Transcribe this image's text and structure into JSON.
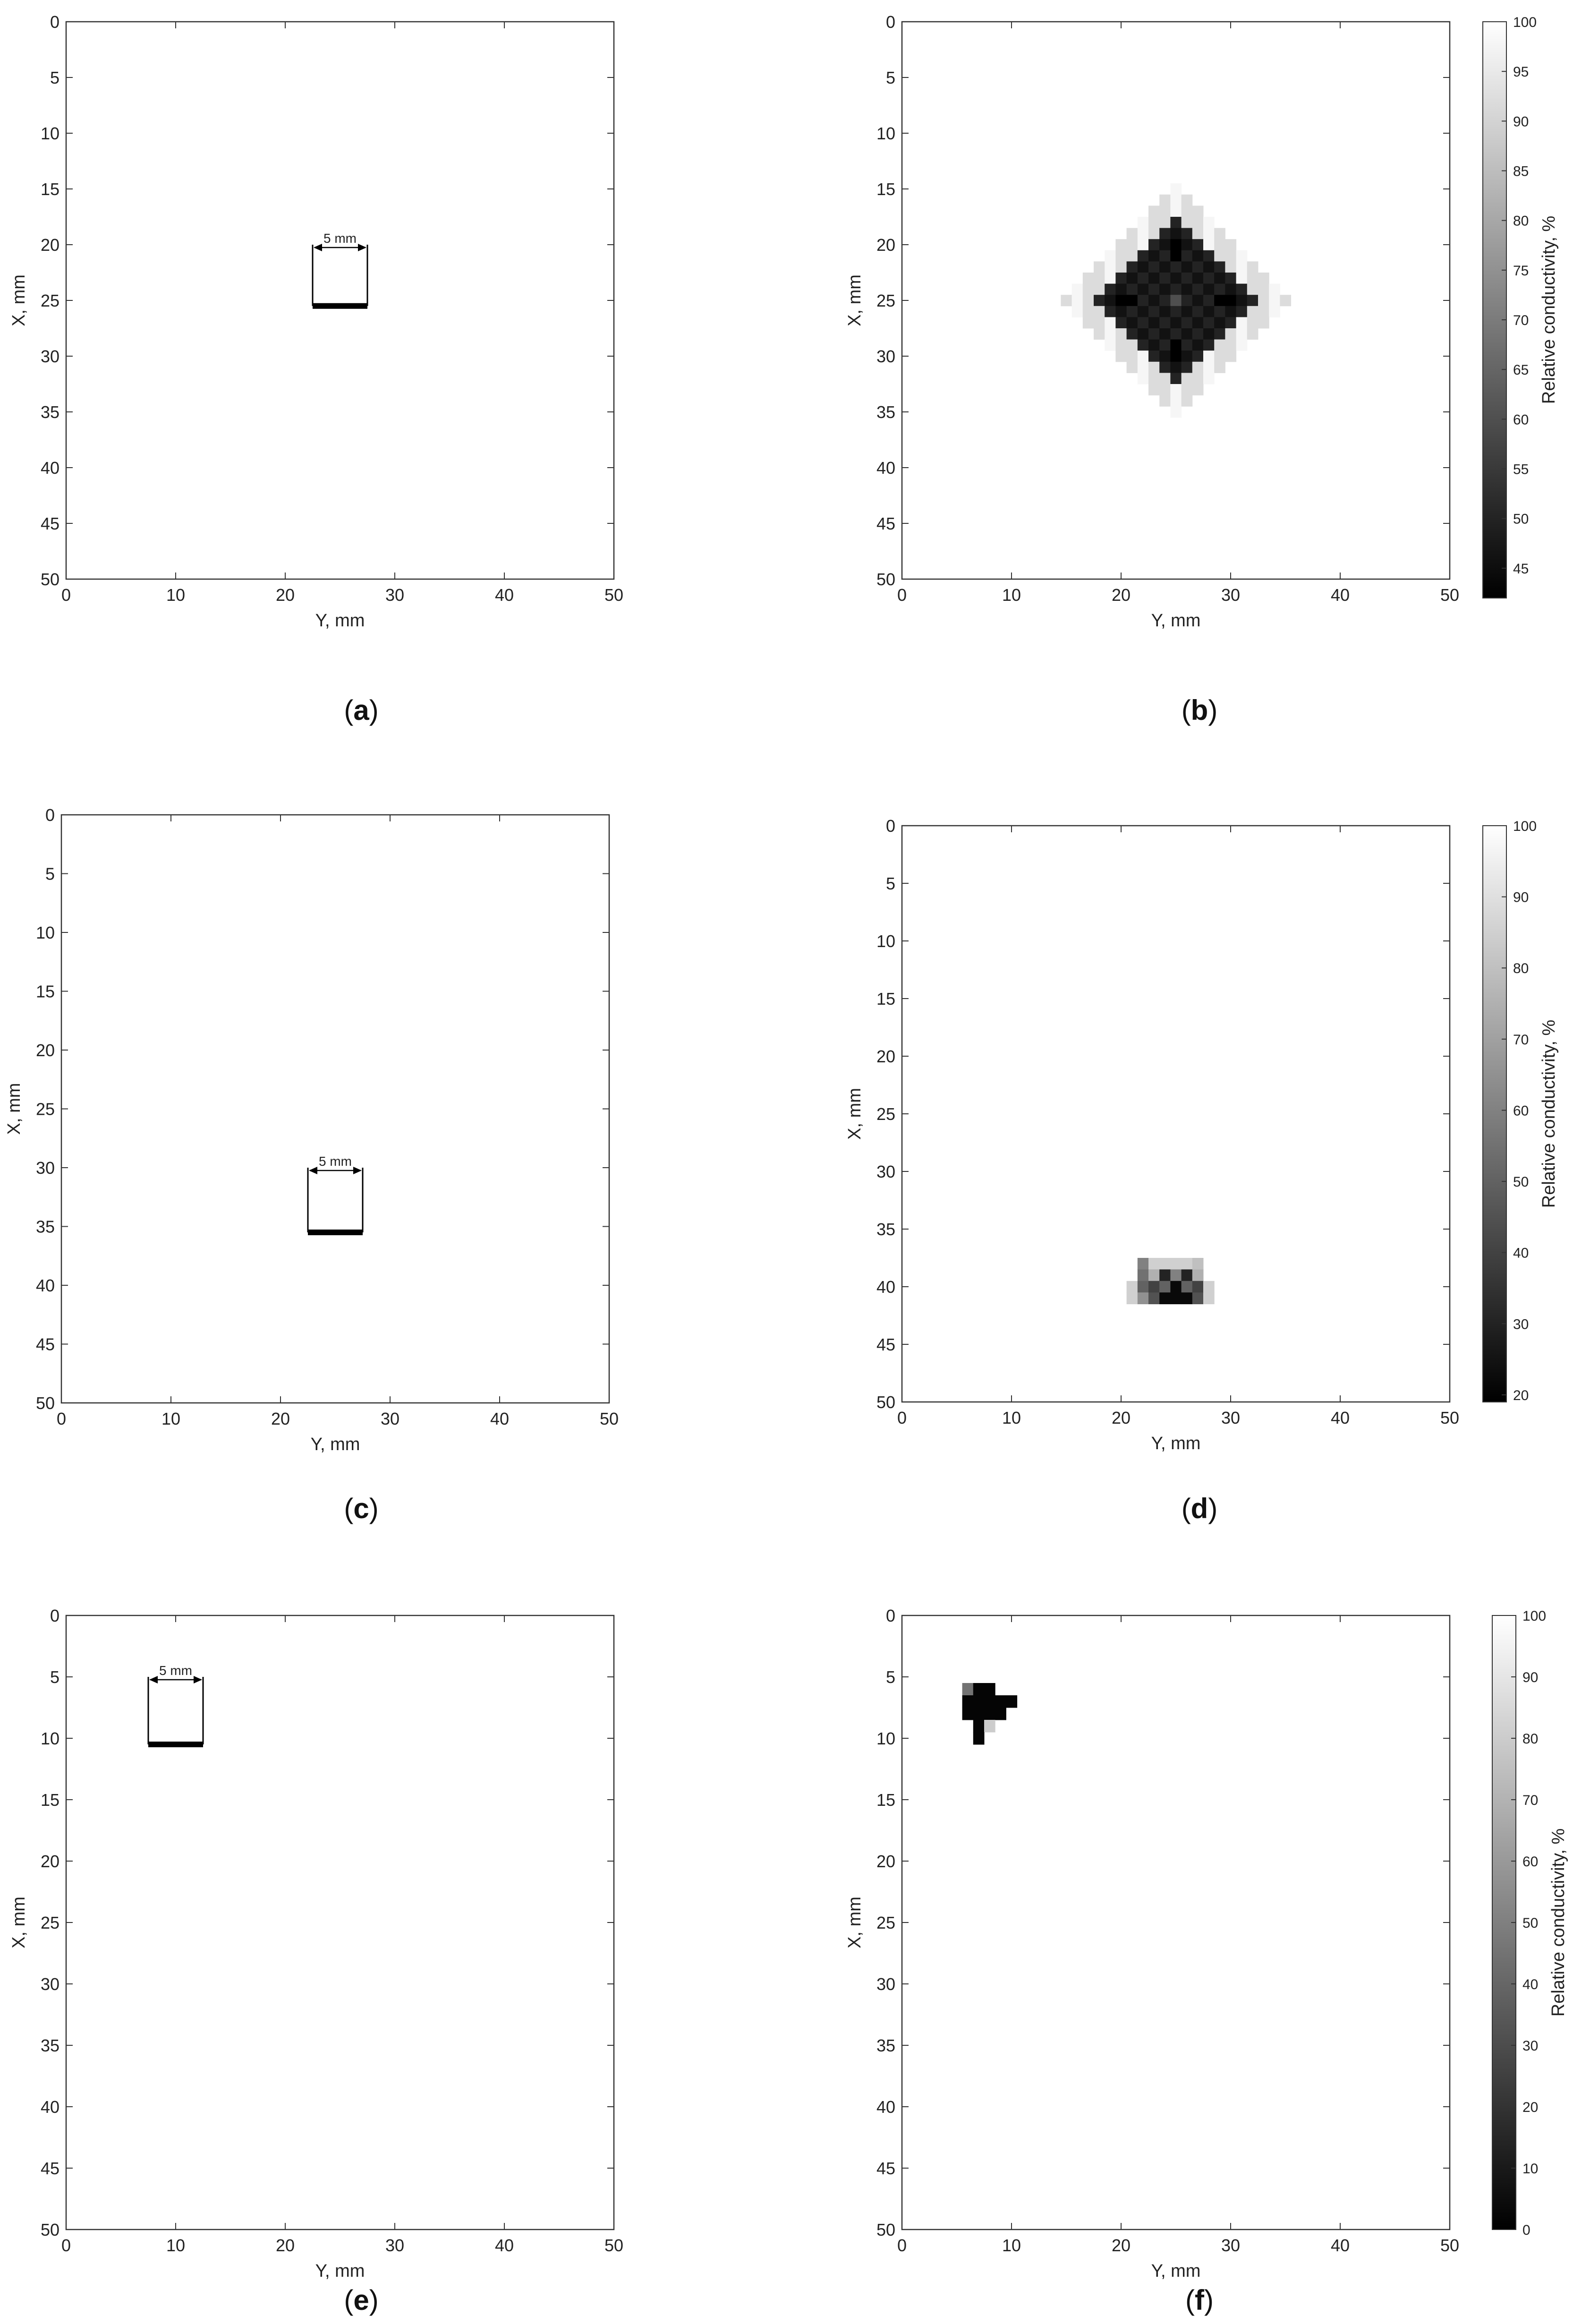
{
  "figure": {
    "panel_letters": [
      "a",
      "b",
      "c",
      "d",
      "e",
      "f"
    ]
  },
  "chart_data": [
    {
      "panel": "a",
      "type": "heatmap",
      "xlabel": "Y, mm",
      "ylabel": "X, mm",
      "xlim": [
        0,
        50
      ],
      "ylim": [
        50,
        0
      ],
      "xticks": [
        0,
        10,
        20,
        30,
        40,
        50
      ],
      "yticks": [
        0,
        5,
        10,
        15,
        20,
        25,
        30,
        35,
        40,
        45,
        50
      ],
      "annotation": "5 mm",
      "sample_geometry": {
        "y_start": 22.5,
        "y_end": 27.5,
        "x_top": 20,
        "x_bottom": 25.5
      }
    },
    {
      "panel": "b",
      "type": "heatmap",
      "xlabel": "Y, mm",
      "ylabel": "X, mm",
      "xlim": [
        0,
        50
      ],
      "ylim": [
        50,
        0
      ],
      "xticks": [
        0,
        10,
        20,
        30,
        40,
        50
      ],
      "yticks": [
        0,
        5,
        10,
        15,
        20,
        25,
        30,
        35,
        40,
        45,
        50
      ],
      "colorbar_label": "Relative conductivity, %",
      "colorbar_range": [
        42,
        100
      ],
      "colorbar_ticks": [
        45,
        50,
        55,
        60,
        65,
        70,
        75,
        80,
        85,
        90,
        95,
        100
      ],
      "cell_size_mm": 1,
      "anomaly": {
        "type": "diamond",
        "center_x": 25,
        "center_y": 25,
        "outer_radius": 10,
        "inner_radius": 7.5,
        "ring_value": 92,
        "core_value": 46,
        "center_value": 60,
        "cross_value": 42
      }
    },
    {
      "panel": "c",
      "type": "heatmap",
      "xlabel": "Y, mm",
      "ylabel": "X, mm",
      "xlim": [
        0,
        50
      ],
      "ylim": [
        50,
        0
      ],
      "xticks": [
        0,
        10,
        20,
        30,
        40,
        50
      ],
      "yticks": [
        0,
        5,
        10,
        15,
        20,
        25,
        30,
        35,
        40,
        45,
        50
      ],
      "annotation": "5 mm",
      "sample_geometry": {
        "y_start": 22.5,
        "y_end": 27.5,
        "x_top": 30,
        "x_bottom": 35.5
      }
    },
    {
      "panel": "d",
      "type": "heatmap",
      "xlabel": "Y, mm",
      "ylabel": "X, mm",
      "xlim": [
        0,
        50
      ],
      "ylim": [
        50,
        0
      ],
      "xticks": [
        0,
        10,
        20,
        30,
        40,
        50
      ],
      "yticks": [
        0,
        5,
        10,
        15,
        20,
        25,
        30,
        35,
        40,
        45,
        50
      ],
      "colorbar_label": "Relative conductivity, %",
      "colorbar_range": [
        19,
        100
      ],
      "colorbar_ticks": [
        20,
        30,
        40,
        50,
        60,
        70,
        80,
        90,
        100
      ],
      "cell_size_mm": 1,
      "cells": [
        {
          "x": 38,
          "y": 22,
          "v": 60
        },
        {
          "x": 38,
          "y": 23,
          "v": 85
        },
        {
          "x": 38,
          "y": 24,
          "v": 85
        },
        {
          "x": 38,
          "y": 25,
          "v": 85
        },
        {
          "x": 38,
          "y": 26,
          "v": 85
        },
        {
          "x": 38,
          "y": 27,
          "v": 80
        },
        {
          "x": 39,
          "y": 22,
          "v": 55
        },
        {
          "x": 39,
          "y": 23,
          "v": 75
        },
        {
          "x": 39,
          "y": 24,
          "v": 30
        },
        {
          "x": 39,
          "y": 25,
          "v": 60
        },
        {
          "x": 39,
          "y": 26,
          "v": 30
        },
        {
          "x": 39,
          "y": 27,
          "v": 75
        },
        {
          "x": 40,
          "y": 21,
          "v": 85
        },
        {
          "x": 40,
          "y": 22,
          "v": 50
        },
        {
          "x": 40,
          "y": 23,
          "v": 40
        },
        {
          "x": 40,
          "y": 24,
          "v": 50
        },
        {
          "x": 40,
          "y": 25,
          "v": 22
        },
        {
          "x": 40,
          "y": 26,
          "v": 50
        },
        {
          "x": 40,
          "y": 27,
          "v": 40
        },
        {
          "x": 40,
          "y": 28,
          "v": 85
        },
        {
          "x": 41,
          "y": 21,
          "v": 85
        },
        {
          "x": 41,
          "y": 22,
          "v": 65
        },
        {
          "x": 41,
          "y": 23,
          "v": 45
        },
        {
          "x": 41,
          "y": 24,
          "v": 22
        },
        {
          "x": 41,
          "y": 25,
          "v": 22
        },
        {
          "x": 41,
          "y": 26,
          "v": 22
        },
        {
          "x": 41,
          "y": 27,
          "v": 45
        },
        {
          "x": 41,
          "y": 28,
          "v": 85
        }
      ]
    },
    {
      "panel": "e",
      "type": "heatmap",
      "xlabel": "Y, mm",
      "ylabel": "X, mm",
      "xlim": [
        0,
        50
      ],
      "ylim": [
        50,
        0
      ],
      "xticks": [
        0,
        10,
        20,
        30,
        40,
        50
      ],
      "yticks": [
        0,
        5,
        10,
        15,
        20,
        25,
        30,
        35,
        40,
        45,
        50
      ],
      "annotation": "5 mm",
      "sample_geometry": {
        "y_start": 7.5,
        "y_end": 12.5,
        "x_top": 5,
        "x_bottom": 10.5
      }
    },
    {
      "panel": "f",
      "type": "heatmap",
      "xlabel": "Y, mm",
      "ylabel": "X, mm",
      "xlim": [
        0,
        50
      ],
      "ylim": [
        50,
        0
      ],
      "xticks": [
        0,
        10,
        20,
        30,
        40,
        50
      ],
      "yticks": [
        0,
        5,
        10,
        15,
        20,
        25,
        30,
        35,
        40,
        45,
        50
      ],
      "colorbar_label": "Relative conductivity, %",
      "colorbar_range": [
        0,
        100
      ],
      "colorbar_ticks": [
        0,
        10,
        20,
        30,
        40,
        50,
        60,
        70,
        80,
        90,
        100
      ],
      "cell_size_mm": 1,
      "cells": [
        {
          "x": 6,
          "y": 6,
          "v": 45
        },
        {
          "x": 6,
          "y": 7,
          "v": 2
        },
        {
          "x": 6,
          "y": 8,
          "v": 2
        },
        {
          "x": 7,
          "y": 6,
          "v": 2
        },
        {
          "x": 7,
          "y": 7,
          "v": 2
        },
        {
          "x": 7,
          "y": 8,
          "v": 2
        },
        {
          "x": 7,
          "y": 9,
          "v": 2
        },
        {
          "x": 7,
          "y": 10,
          "v": 2
        },
        {
          "x": 8,
          "y": 6,
          "v": 2
        },
        {
          "x": 8,
          "y": 7,
          "v": 2
        },
        {
          "x": 8,
          "y": 8,
          "v": 2
        },
        {
          "x": 8,
          "y": 9,
          "v": 2
        },
        {
          "x": 9,
          "y": 7,
          "v": 2
        },
        {
          "x": 9,
          "y": 8,
          "v": 80
        },
        {
          "x": 10,
          "y": 7,
          "v": 2
        }
      ]
    }
  ]
}
